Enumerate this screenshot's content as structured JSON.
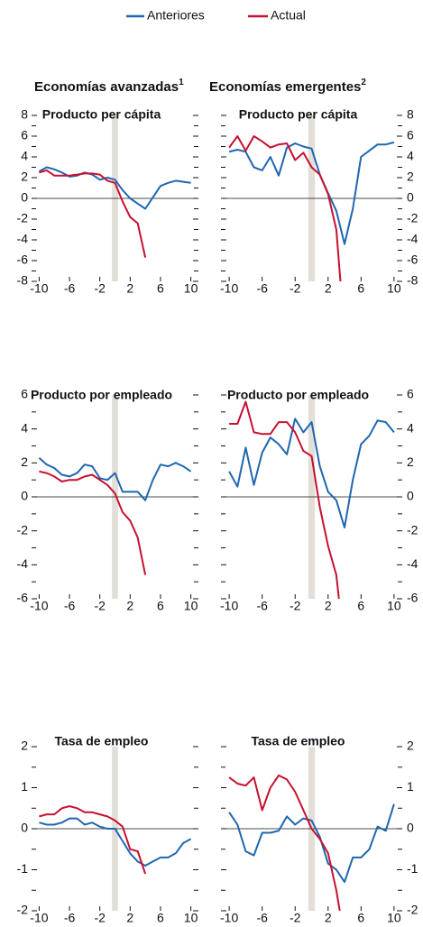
{
  "legend": [
    {
      "name": "Anteriores",
      "color": "#1f66b0"
    },
    {
      "name": "Actual",
      "color": "#c8102e"
    }
  ],
  "columns": [
    {
      "title": "Economías avanzadas",
      "note": "1"
    },
    {
      "title": "Economías emergentes",
      "note": "2"
    }
  ],
  "chart_data": [
    {
      "type": "line",
      "title": "Producto per cápita",
      "ytick_side": "left",
      "x": [
        -10,
        -9,
        -8,
        -7,
        -6,
        -5,
        -4,
        -3,
        -2,
        -1,
        0,
        1,
        2,
        3,
        4,
        5,
        6,
        7,
        8,
        9,
        10
      ],
      "xlim": [
        -11,
        11
      ],
      "xticks": [
        -10,
        -6,
        -2,
        2,
        6,
        10
      ],
      "band": [
        -0.4,
        0.4
      ],
      "ylim": [
        -8,
        8
      ],
      "yticks": [
        -8,
        -6,
        -4,
        -2,
        0,
        2,
        4,
        6,
        8
      ],
      "minor_yticks": [
        -7,
        -5,
        -3,
        -1,
        1,
        3,
        5,
        7
      ],
      "series": [
        {
          "name": "Anteriores",
          "color": "#1f66b0",
          "values": [
            2.6,
            3.0,
            2.8,
            2.5,
            2.1,
            2.2,
            2.5,
            2.3,
            1.8,
            2.0,
            1.8,
            0.8,
            0,
            -0.5,
            -1.0,
            0.1,
            1.2,
            1.5,
            1.7,
            1.6,
            1.5
          ]
        },
        {
          "name": "Actual",
          "color": "#c8102e",
          "values": [
            2.5,
            2.7,
            2.2,
            2.2,
            2.2,
            2.3,
            2.4,
            2.4,
            2.3,
            1.7,
            1.5,
            -0.3,
            -1.8,
            -2.4,
            -5.7,
            null,
            null,
            null,
            null,
            null,
            null
          ]
        }
      ]
    },
    {
      "type": "line",
      "title": "Producto per cápita",
      "ytick_side": "right",
      "x": [
        -10,
        -9,
        -8,
        -7,
        -6,
        -5,
        -4,
        -3,
        -2,
        -1,
        0,
        1,
        2,
        3,
        4,
        5,
        6,
        7,
        8,
        9,
        10
      ],
      "xlim": [
        -11,
        11
      ],
      "xticks": [
        -10,
        -6,
        -2,
        2,
        6,
        10
      ],
      "band": [
        -0.4,
        0.4
      ],
      "ylim": [
        -8,
        8
      ],
      "yticks": [
        -8,
        -6,
        -4,
        -2,
        0,
        2,
        4,
        6,
        8
      ],
      "minor_yticks": [
        -7,
        -5,
        -3,
        -1,
        1,
        3,
        5,
        7
      ],
      "series": [
        {
          "name": "Anteriores",
          "color": "#1f66b0",
          "values": [
            4.5,
            4.7,
            4.5,
            3.0,
            2.7,
            4.0,
            2.2,
            4.9,
            5.3,
            5.0,
            4.8,
            2.3,
            0.5,
            -1.2,
            -4.4,
            -1.0,
            4.0,
            4.6,
            5.2,
            5.2,
            5.4
          ]
        },
        {
          "name": "Actual",
          "color": "#c8102e",
          "values": [
            4.9,
            6.0,
            4.6,
            6.0,
            5.5,
            4.9,
            5.2,
            5.3,
            3.7,
            4.4,
            3.0,
            2.3,
            0.4,
            -3.0,
            -13,
            null,
            null,
            null,
            null,
            null,
            null
          ]
        }
      ]
    },
    {
      "type": "line",
      "title": "Producto por empleado",
      "ytick_side": "left",
      "x": [
        -10,
        -9,
        -8,
        -7,
        -6,
        -5,
        -4,
        -3,
        -2,
        -1,
        0,
        1,
        2,
        3,
        4,
        5,
        6,
        7,
        8,
        9,
        10
      ],
      "xlim": [
        -11,
        11
      ],
      "xticks": [
        -10,
        -6,
        -2,
        2,
        6,
        10
      ],
      "band": [
        -0.4,
        0.4
      ],
      "ylim": [
        -6,
        6
      ],
      "yticks": [
        -6,
        -4,
        -2,
        0,
        2,
        4,
        6
      ],
      "minor_yticks": [
        -5,
        -3,
        -1,
        1,
        3,
        5
      ],
      "series": [
        {
          "name": "Anteriores",
          "color": "#1f66b0",
          "values": [
            2.3,
            1.9,
            1.7,
            1.3,
            1.2,
            1.4,
            1.9,
            1.8,
            1.1,
            1.0,
            1.4,
            0.3,
            0.3,
            0.3,
            -0.2,
            1.0,
            1.9,
            1.8,
            2.0,
            1.8,
            1.5
          ]
        },
        {
          "name": "Actual",
          "color": "#c8102e",
          "values": [
            1.5,
            1.4,
            1.2,
            0.9,
            1.0,
            1.0,
            1.2,
            1.3,
            1.0,
            0.7,
            0.2,
            -0.9,
            -1.4,
            -2.4,
            -4.6,
            null,
            null,
            null,
            null,
            null,
            null
          ]
        }
      ]
    },
    {
      "type": "line",
      "title": "Producto por empleado",
      "ytick_side": "right",
      "x": [
        -10,
        -9,
        -8,
        -7,
        -6,
        -5,
        -4,
        -3,
        -2,
        -1,
        0,
        1,
        2,
        3,
        4,
        5,
        6,
        7,
        8,
        9,
        10
      ],
      "xlim": [
        -11,
        11
      ],
      "xticks": [
        -10,
        -6,
        -2,
        2,
        6,
        10
      ],
      "band": [
        -0.4,
        0.4
      ],
      "ylim": [
        -6,
        6
      ],
      "yticks": [
        -6,
        -4,
        -2,
        0,
        2,
        4,
        6
      ],
      "minor_yticks": [
        -5,
        -3,
        -1,
        1,
        3,
        5
      ],
      "series": [
        {
          "name": "Anteriores",
          "color": "#1f66b0",
          "values": [
            1.5,
            0.6,
            2.9,
            0.7,
            2.6,
            3.5,
            3.1,
            2.5,
            4.6,
            3.8,
            4.4,
            1.8,
            0.3,
            -0.2,
            -1.8,
            1.0,
            3.1,
            3.6,
            4.5,
            4.4,
            3.8
          ]
        },
        {
          "name": "Actual",
          "color": "#c8102e",
          "values": [
            4.3,
            4.3,
            5.6,
            3.8,
            3.7,
            3.7,
            4.4,
            4.4,
            3.8,
            2.7,
            2.4,
            -0.6,
            -2.9,
            -4.6,
            -9,
            null,
            null,
            null,
            null,
            null,
            null
          ]
        }
      ]
    },
    {
      "type": "line",
      "title": "Tasa de empleo",
      "ytick_side": "left",
      "x": [
        -10,
        -9,
        -8,
        -7,
        -6,
        -5,
        -4,
        -3,
        -2,
        -1,
        0,
        1,
        2,
        3,
        4,
        5,
        6,
        7,
        8,
        9,
        10
      ],
      "xlim": [
        -11,
        11
      ],
      "xticks": [
        -10,
        -6,
        -2,
        2,
        6,
        10
      ],
      "band": [
        -0.4,
        0.4
      ],
      "ylim": [
        -2,
        2
      ],
      "yticks": [
        -2,
        -1,
        0,
        1,
        2
      ],
      "minor_yticks": [
        -1.5,
        -0.5,
        0.5,
        1.5
      ],
      "series": [
        {
          "name": "Anteriores",
          "color": "#1f66b0",
          "values": [
            0.15,
            0.1,
            0.1,
            0.15,
            0.25,
            0.25,
            0.1,
            0.15,
            0.05,
            0.0,
            0.0,
            -0.3,
            -0.6,
            -0.8,
            -0.9,
            -0.8,
            -0.7,
            -0.7,
            -0.6,
            -0.35,
            -0.25
          ]
        },
        {
          "name": "Actual",
          "color": "#c8102e",
          "values": [
            0.3,
            0.35,
            0.35,
            0.5,
            0.55,
            0.5,
            0.4,
            0.4,
            0.35,
            0.3,
            0.2,
            0.05,
            -0.5,
            -0.55,
            -1.1,
            null,
            null,
            null,
            null,
            null,
            null
          ]
        }
      ]
    },
    {
      "type": "line",
      "title": "Tasa de empleo",
      "ytick_side": "right",
      "x": [
        -10,
        -9,
        -8,
        -7,
        -6,
        -5,
        -4,
        -3,
        -2,
        -1,
        0,
        1,
        2,
        3,
        4,
        5,
        6,
        7,
        8,
        9,
        10
      ],
      "xlim": [
        -11,
        11
      ],
      "xticks": [
        -10,
        -6,
        -2,
        2,
        6,
        10
      ],
      "band": [
        -0.4,
        0.4
      ],
      "ylim": [
        -2,
        2
      ],
      "yticks": [
        -2,
        -1,
        0,
        1,
        2
      ],
      "minor_yticks": [
        -1.5,
        -0.5,
        0.5,
        1.5
      ],
      "series": [
        {
          "name": "Anteriores",
          "color": "#1f66b0",
          "values": [
            0.4,
            0.1,
            -0.55,
            -0.65,
            -0.1,
            -0.1,
            -0.05,
            0.3,
            0.1,
            0.25,
            0.2,
            -0.2,
            -0.85,
            -1.0,
            -1.3,
            -0.7,
            -0.7,
            -0.5,
            0.05,
            -0.05,
            0.6
          ]
        },
        {
          "name": "Actual",
          "color": "#c8102e",
          "values": [
            1.25,
            1.1,
            1.05,
            1.25,
            0.45,
            1.0,
            1.3,
            1.2,
            0.9,
            0.45,
            0.0,
            -0.25,
            -0.6,
            -1.5,
            -2.7,
            null,
            null,
            null,
            null,
            null,
            null
          ]
        }
      ]
    }
  ]
}
